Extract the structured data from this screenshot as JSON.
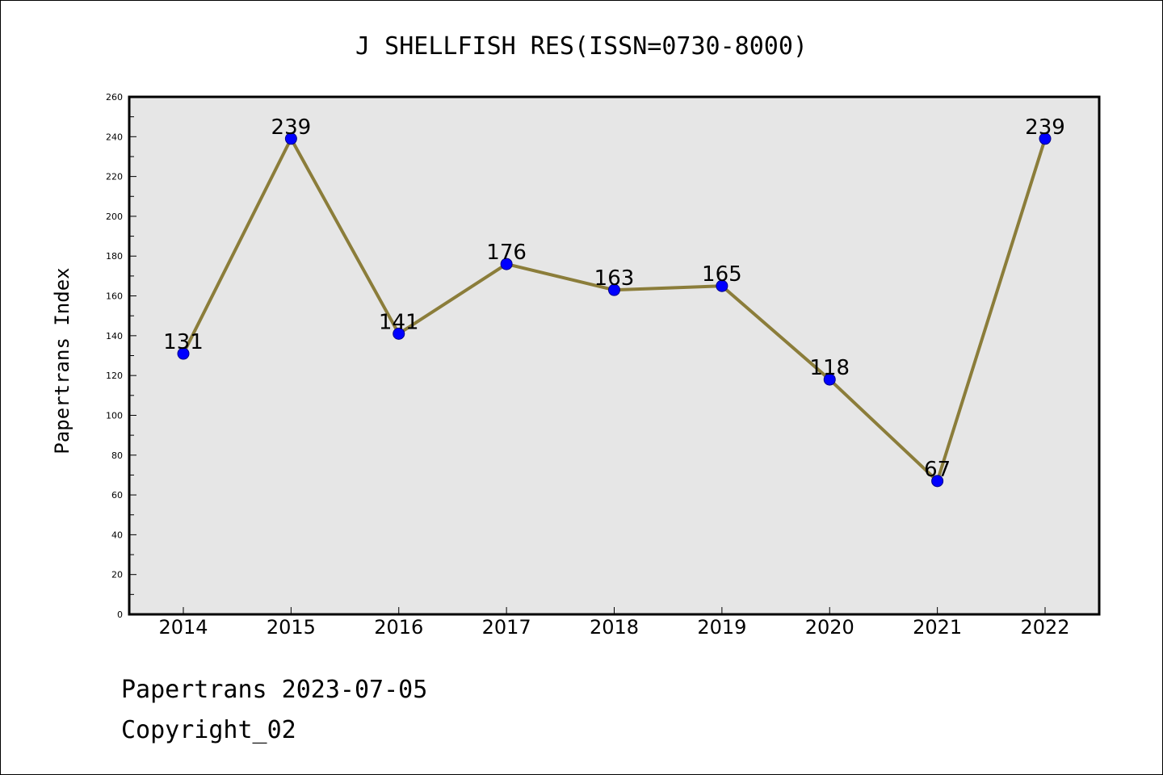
{
  "chart_data": {
    "type": "line",
    "title": "J SHELLFISH RES(ISSN=0730-8000)",
    "xlabel": "",
    "ylabel": "Papertrans Index",
    "x": [
      "2014",
      "2015",
      "2016",
      "2017",
      "2018",
      "2019",
      "2020",
      "2021",
      "2022"
    ],
    "series": [
      {
        "values": [
          131,
          239,
          141,
          176,
          163,
          165,
          118,
          67,
          239
        ]
      }
    ],
    "ylim": [
      0,
      260
    ],
    "yticks": [
      0,
      20,
      40,
      60,
      80,
      100,
      120,
      140,
      160,
      180,
      200,
      220,
      240,
      260
    ],
    "data_labels": [
      "131",
      "239",
      "141",
      "176",
      "163",
      "165",
      "118",
      "67",
      "239"
    ],
    "grid": false,
    "legend": "none",
    "colors": {
      "line": "#8B7D3A",
      "marker": "#0000FF",
      "plot_bg": "#E6E6E6"
    }
  },
  "footer": {
    "line1": "Papertrans 2023-07-05",
    "line2": "Copyright_02"
  }
}
